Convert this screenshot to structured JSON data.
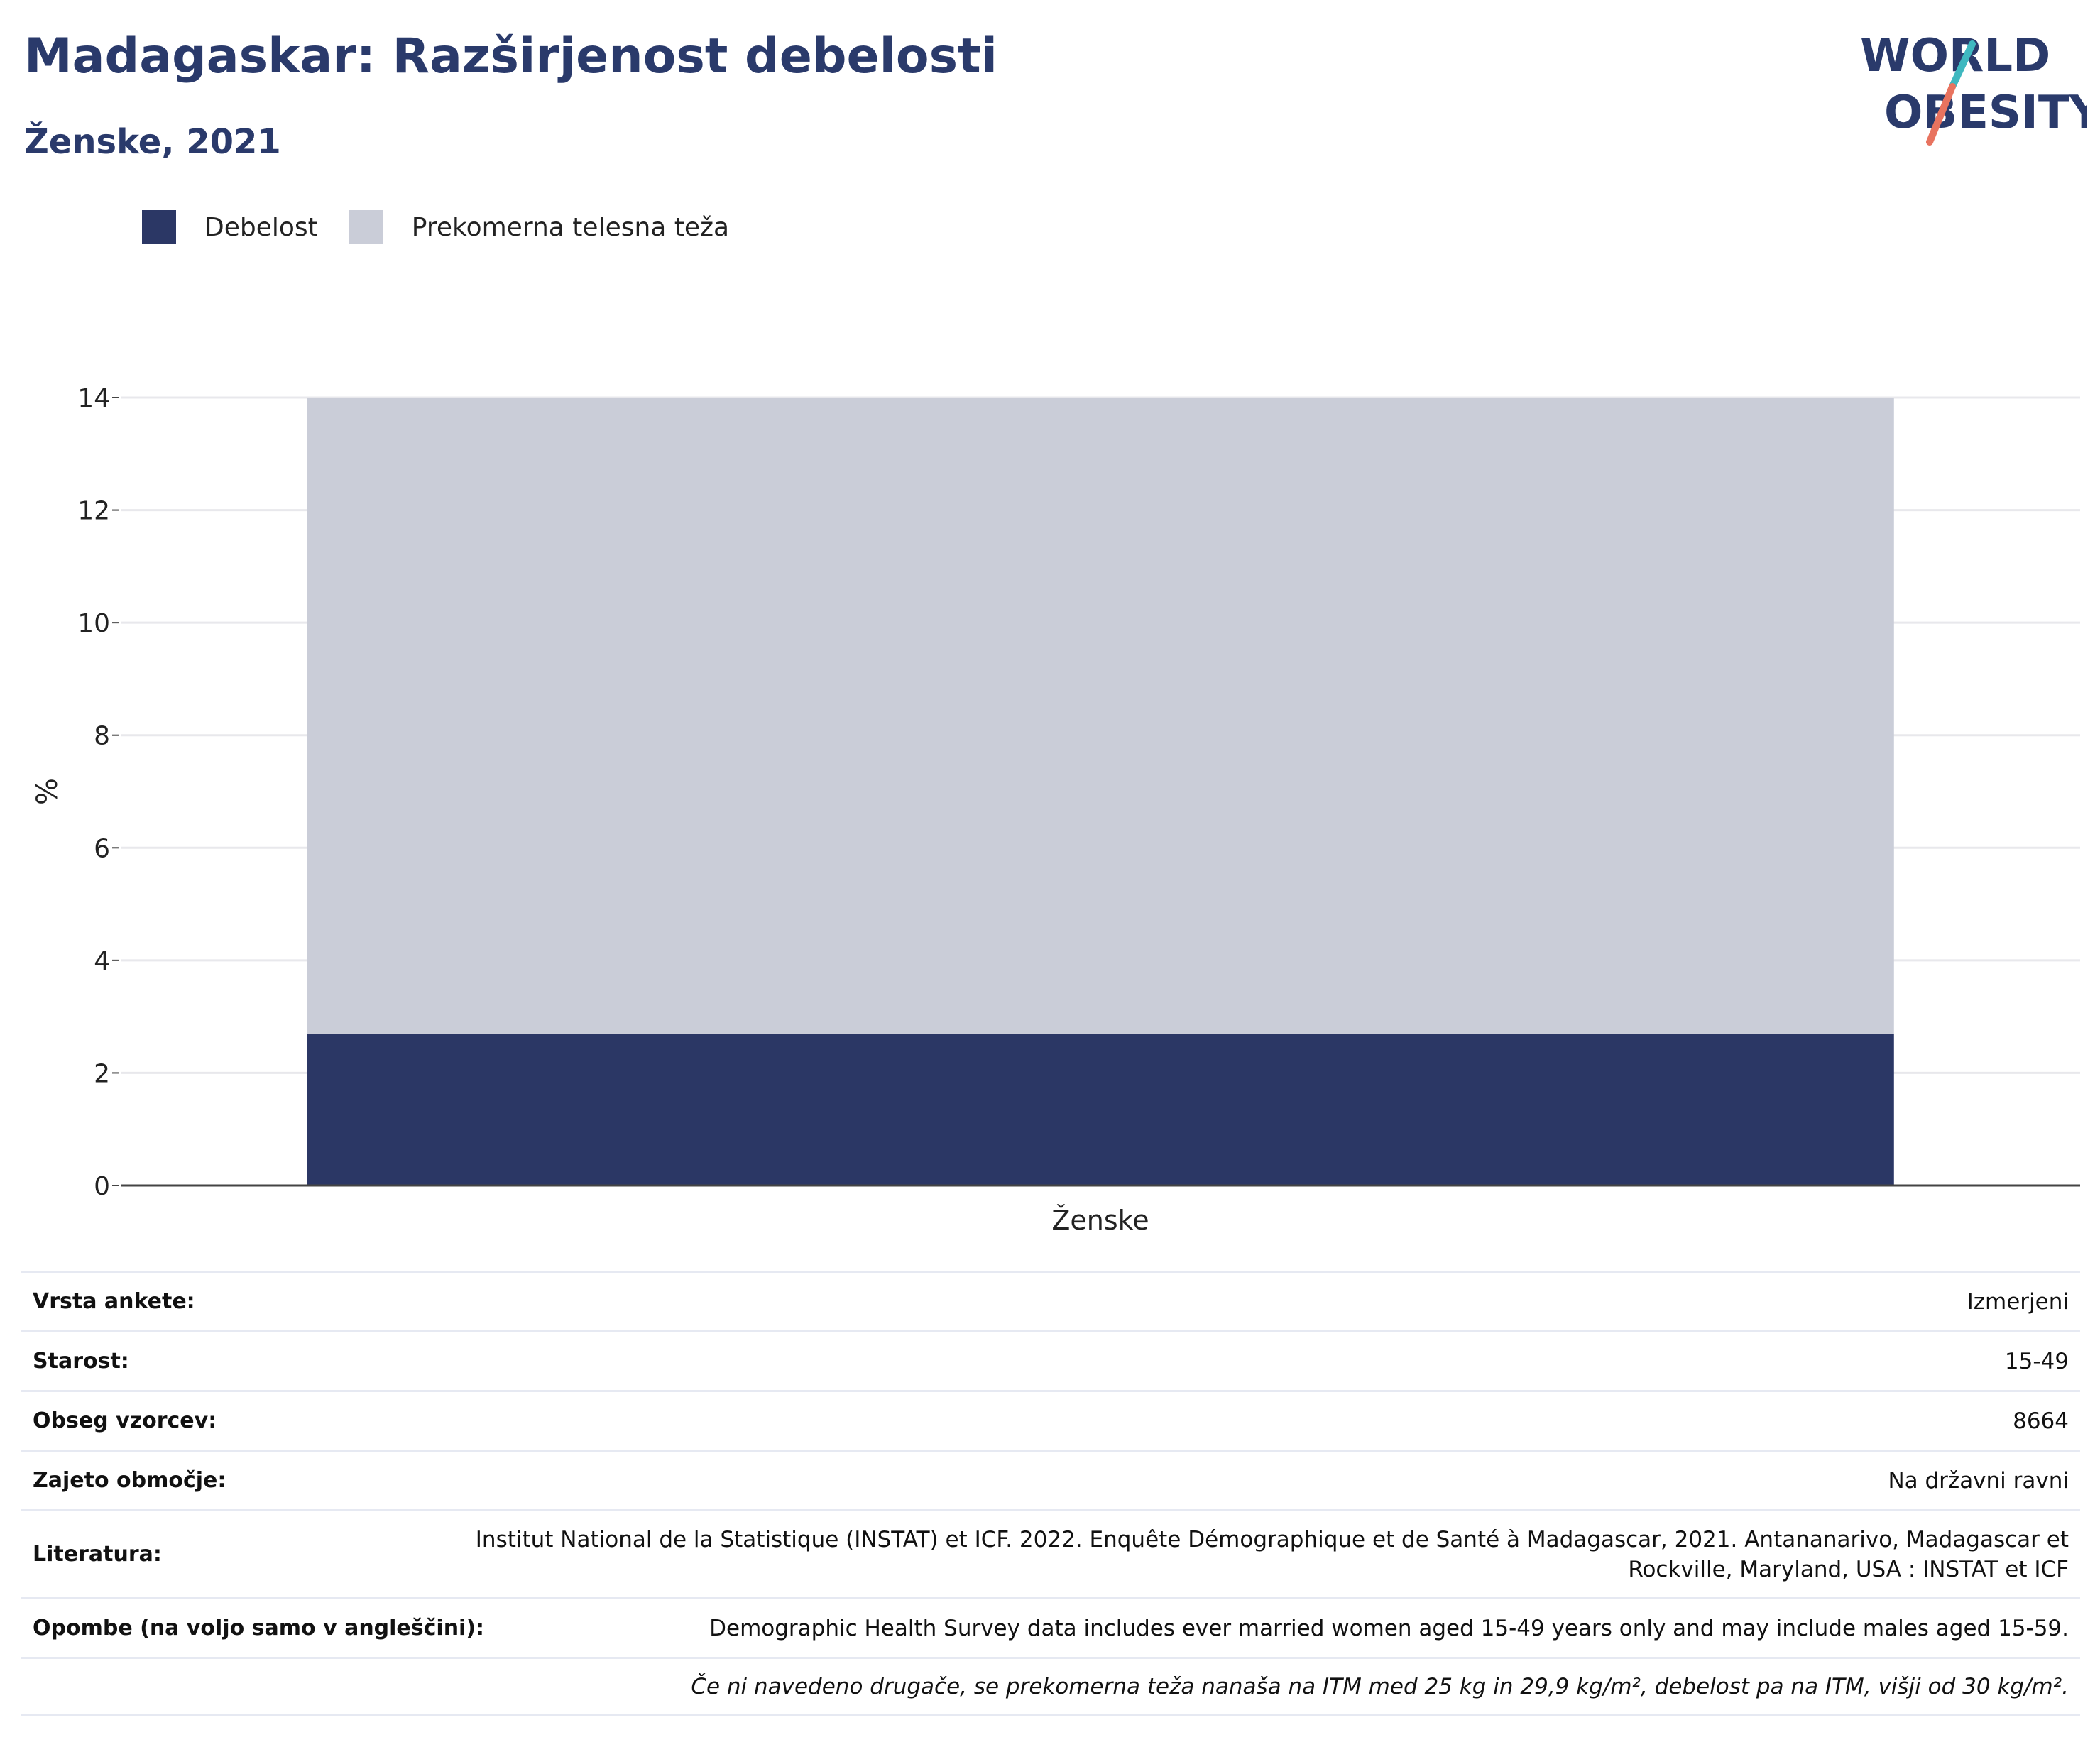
{
  "header": {
    "title": "Madagaskar: Razširjenost debelosti",
    "subtitle": "Ženske, 2021"
  },
  "logo": {
    "line1": "WORLD",
    "line2": "OBESITY",
    "icon": "world-obesity-logo"
  },
  "legend": [
    {
      "label": "Debelost",
      "color": "#2b3765"
    },
    {
      "label": "Prekomerna telesna teža",
      "color": "#cacdd8"
    }
  ],
  "chart_data": {
    "type": "bar",
    "stacked": true,
    "categories": [
      "Ženske"
    ],
    "series": [
      {
        "name": "Debelost",
        "values": [
          2.7
        ],
        "color": "#2b3765"
      },
      {
        "name": "Prekomerna telesna teža",
        "values": [
          11.3
        ],
        "color": "#cacdd8"
      }
    ],
    "ylabel": "%",
    "ylim": [
      0,
      14
    ],
    "yticks": [
      0,
      2,
      4,
      6,
      8,
      10,
      12,
      14
    ],
    "grid": true
  },
  "info": [
    {
      "key": "Vrsta ankete:",
      "value": "Izmerjeni"
    },
    {
      "key": "Starost:",
      "value": "15-49"
    },
    {
      "key": "Obseg vzorcev:",
      "value": "8664"
    },
    {
      "key": "Zajeto območje:",
      "value": "Na državni ravni"
    },
    {
      "key": "Literatura:",
      "value": "Institut National de la Statistique (INSTAT) et ICF. 2022. Enquête Démographique et de Santé à Madagascar, 2021. Antananarivo, Madagascar et Rockville, Maryland, USA : INSTAT et ICF"
    },
    {
      "key": "Opombe (na voljo samo v angleščini):",
      "value": "Demographic Health Survey data includes ever married women aged 15-49 years only and may include males aged 15-59."
    },
    {
      "key": "",
      "value": "Če ni navedeno drugače, se prekomerna teža nanaša na ITM med 25 kg in 29,9 kg/m², debelost pa na ITM, višji od 30 kg/m²."
    }
  ]
}
